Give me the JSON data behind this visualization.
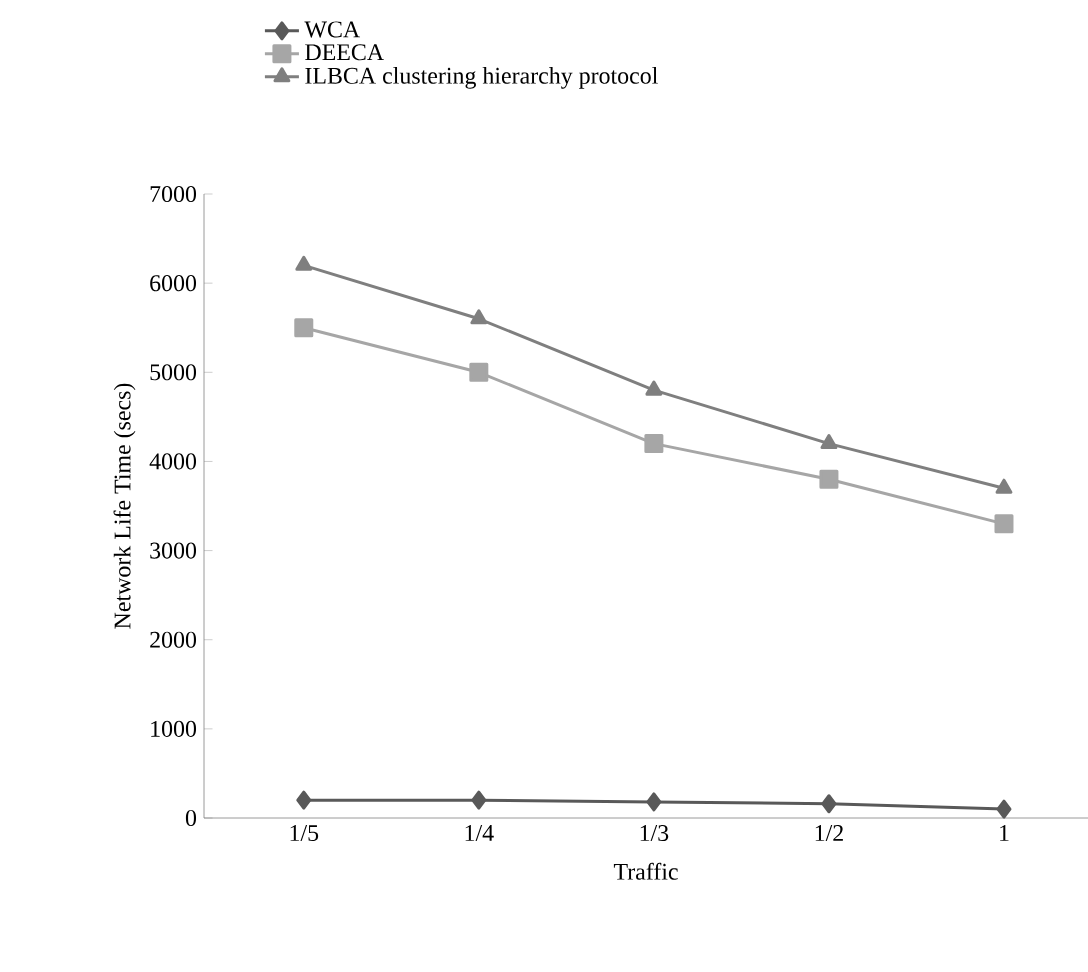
{
  "chart_data": {
    "type": "line",
    "xlabel": "Traffic",
    "ylabel": "Network Life Time (secs)",
    "categories": [
      "1/5",
      "1/4",
      "1/3",
      "1/2",
      "1"
    ],
    "series": [
      {
        "name": "WCA",
        "color": "#595959",
        "marker": "diamond",
        "values": [
          200,
          200,
          180,
          160,
          100
        ]
      },
      {
        "name": "DEECA",
        "color": "#a6a6a6",
        "marker": "square",
        "values": [
          5500,
          5000,
          4200,
          3800,
          3300
        ]
      },
      {
        "name": "ILBCA clustering hierarchy protocol",
        "color": "#7f7f7f",
        "marker": "triangle",
        "values": [
          6200,
          5600,
          4800,
          4200,
          3700
        ]
      }
    ],
    "ylim": [
      0,
      7000
    ],
    "yticks": [
      0,
      1000,
      2000,
      3000,
      4000,
      5000,
      6000,
      7000
    ],
    "grid": false,
    "legend": "top",
    "line_style": "solid"
  }
}
